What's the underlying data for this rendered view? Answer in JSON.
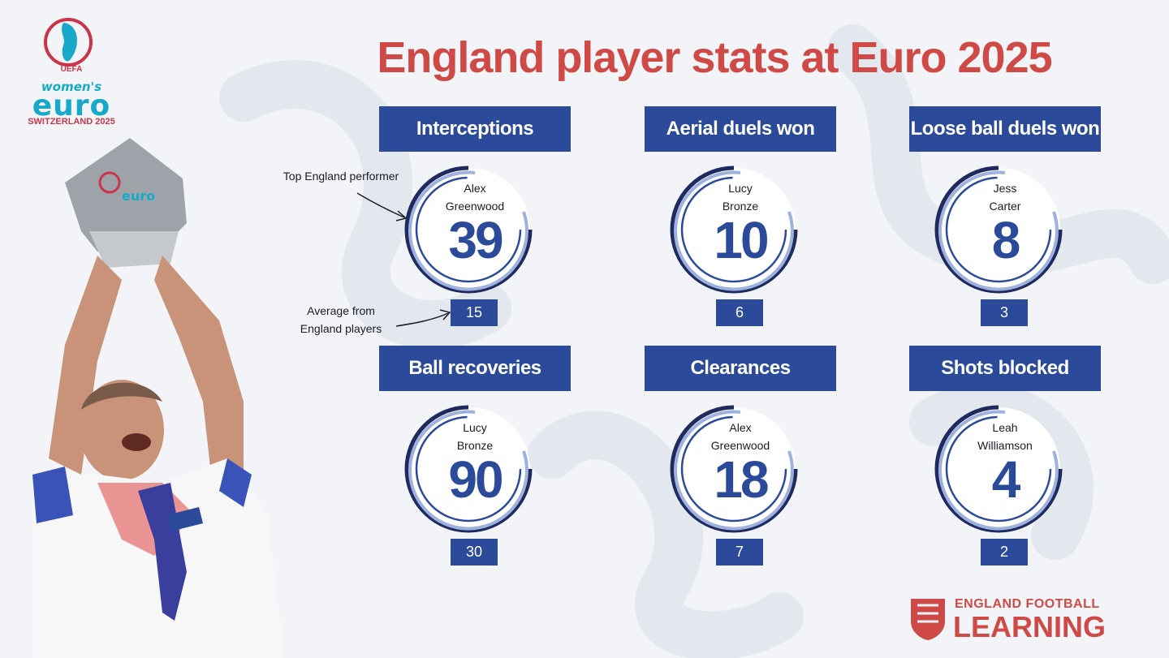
{
  "title": "England player stats at Euro 2025",
  "event_logo": {
    "uefa": "UEFA",
    "womens": "women's",
    "euro": "euro",
    "tagline": "SWITZERLAND 2025"
  },
  "annotations": {
    "top_performer": "Top England performer",
    "average_line1": "Average from",
    "average_line2": "England players"
  },
  "stats": [
    {
      "label": "Interceptions",
      "player_first": "Alex",
      "player_last": "Greenwood",
      "value": "39",
      "average": "15"
    },
    {
      "label": "Aerial duels won",
      "player_first": "Lucy",
      "player_last": "Bronze",
      "value": "10",
      "average": "6"
    },
    {
      "label": "Loose ball duels won",
      "player_first": "Jess",
      "player_last": "Carter",
      "value": "8",
      "average": "3"
    },
    {
      "label": "Ball recoveries",
      "player_first": "Lucy",
      "player_last": "Bronze",
      "value": "90",
      "average": "30"
    },
    {
      "label": "Clearances",
      "player_first": "Alex",
      "player_last": "Greenwood",
      "value": "18",
      "average": "7"
    },
    {
      "label": "Shots blocked",
      "player_first": "Leah",
      "player_last": "Williamson",
      "value": "4",
      "average": "2"
    }
  ],
  "brand": {
    "line1": "ENGLAND FOOTBALL",
    "line2": "LEARNING"
  },
  "colors": {
    "accent_red": "#cf4a46",
    "panel_blue": "#2b4a99",
    "background": "#f2f4f7"
  }
}
